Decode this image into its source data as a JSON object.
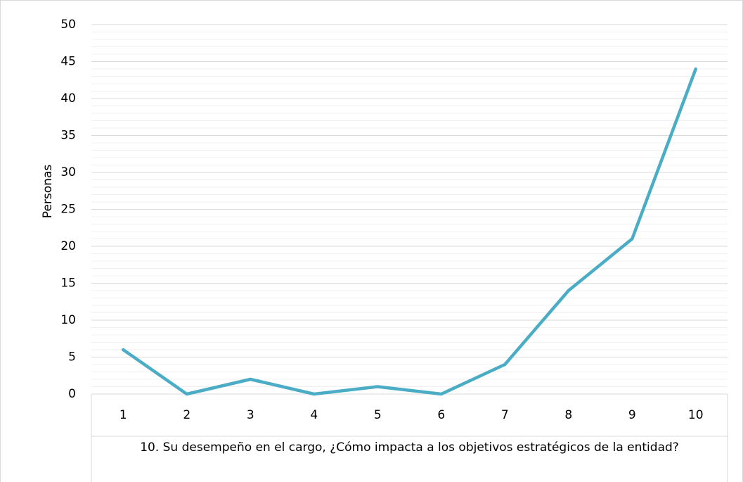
{
  "chart_data": {
    "type": "line",
    "categories": [
      "1",
      "2",
      "3",
      "4",
      "5",
      "6",
      "7",
      "8",
      "9",
      "10"
    ],
    "series": [
      {
        "name": "Personas",
        "color": "#4bacc6",
        "values": [
          6,
          0,
          2,
          0,
          1,
          0,
          4,
          14,
          21,
          44
        ]
      }
    ],
    "ylabel": "Personas",
    "xlabel": "10. Su desempeño en el cargo, ¿Cómo impacta a los objetivos estratégicos de la entidad?",
    "ylim": [
      0,
      50
    ],
    "yticks": [
      0,
      5,
      10,
      15,
      20,
      25,
      30,
      35,
      40,
      45,
      50
    ],
    "grid": true,
    "minor_grid": true
  }
}
